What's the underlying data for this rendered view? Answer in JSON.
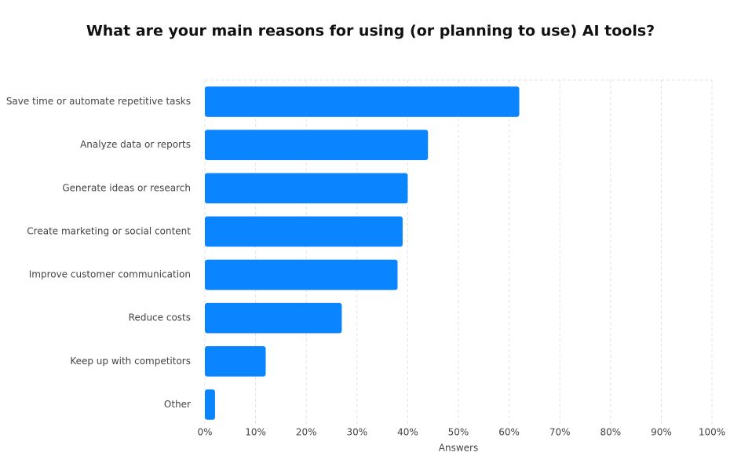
{
  "chart_data": {
    "type": "hbar",
    "title": "What are your main reasons for using (or planning to use) AI tools?",
    "x_label": "Answers",
    "categories": [
      "Save time or automate repetitive tasks",
      "Analyze data or reports",
      "Generate ideas or research",
      "Create marketing or social content",
      "Improve customer communication",
      "Reduce costs",
      "Keep up with competitors",
      "Other"
    ],
    "values": [
      62,
      44,
      40,
      39,
      38,
      27,
      12,
      2
    ],
    "color": "#0a84ff",
    "xlim": [
      0,
      100
    ],
    "xticks": [
      {
        "value": 0,
        "label": "0%"
      },
      {
        "value": 10,
        "label": "10%"
      },
      {
        "value": 20,
        "label": "20%"
      },
      {
        "value": 30,
        "label": "30%"
      },
      {
        "value": 40,
        "label": "40%"
      },
      {
        "value": 50,
        "label": "50%"
      },
      {
        "value": 60,
        "label": "60%"
      },
      {
        "value": 70,
        "label": "70%"
      },
      {
        "value": 80,
        "label": "80%"
      },
      {
        "value": 90,
        "label": "90%"
      },
      {
        "value": 100,
        "label": "100%"
      }
    ],
    "grid": true
  }
}
